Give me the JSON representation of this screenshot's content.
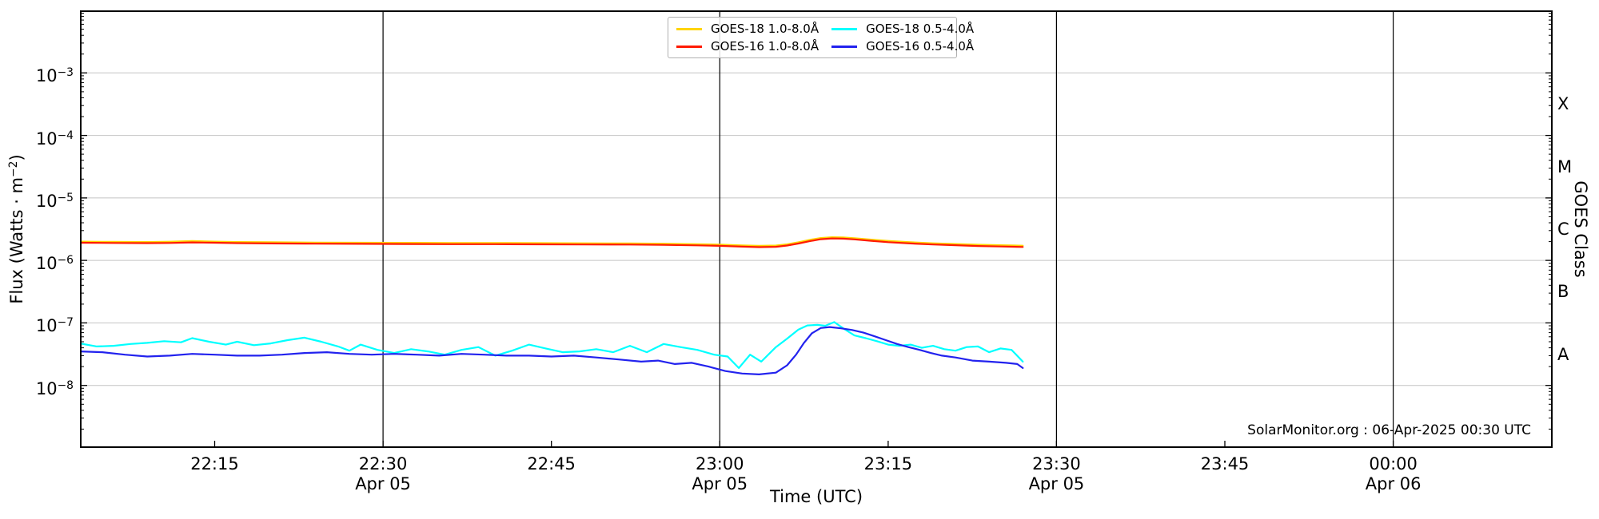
{
  "watermark": "SolarMonitor.org : 06-Apr-2025 00:30 UTC",
  "colors": {
    "goes18_long": "#FFD400",
    "goes16_long": "#FF1A00",
    "goes18_short": "#00FFFF",
    "goes16_short": "#2222EE",
    "gridline": "#C4C4C4",
    "day_line": "#000000",
    "spine": "#000000"
  },
  "chart_data": {
    "type": "line",
    "xlabel": "Time (UTC)",
    "ylabel_parts": {
      "prefix": "Flux (Watts · m",
      "exp": "−2",
      "suffix": ")"
    },
    "y2label": "GOES Class",
    "x_unit": "minutes after 22:00 UTC 05-Apr-2025",
    "xlim_minutes": [
      3,
      134.2
    ],
    "ylim": [
      1e-09,
      0.01
    ],
    "yscale": "log",
    "grid": "horizontal-decades",
    "legend_position": "top-center",
    "legend_columns": 2,
    "x_major_ticks": [
      {
        "t": 15,
        "label": "22:15"
      },
      {
        "t": 30,
        "label": "22:30",
        "sublabel": "Apr 05"
      },
      {
        "t": 45,
        "label": "22:45"
      },
      {
        "t": 60,
        "label": "23:00",
        "sublabel": "Apr 05"
      },
      {
        "t": 75,
        "label": "23:15"
      },
      {
        "t": 90,
        "label": "23:30",
        "sublabel": "Apr 05"
      },
      {
        "t": 105,
        "label": "23:45"
      },
      {
        "t": 120,
        "label": "00:00",
        "sublabel": "Apr 06"
      }
    ],
    "y_major_ticks": [
      {
        "value": 0.001,
        "exp": "−3"
      },
      {
        "value": 0.0001,
        "exp": "−4"
      },
      {
        "value": 1e-05,
        "exp": "−5"
      },
      {
        "value": 1e-06,
        "exp": "−6"
      },
      {
        "value": 1e-07,
        "exp": "−7"
      },
      {
        "value": 1e-08,
        "exp": "−8"
      }
    ],
    "grid_decades": [
      0.001,
      0.0001,
      1e-05,
      1e-06,
      1e-07,
      1e-08
    ],
    "day_lines_t": [
      30,
      60,
      90,
      120
    ],
    "goes_classes": [
      {
        "label": "X",
        "value": 0.000316
      },
      {
        "label": "M",
        "value": 3.16e-05
      },
      {
        "label": "C",
        "value": 3.16e-06
      },
      {
        "label": "B",
        "value": 3.16e-07
      },
      {
        "label": "A",
        "value": 3.16e-08
      }
    ],
    "series": [
      {
        "name": "GOES-18 1.0-8.0Å",
        "color": "#FFD400",
        "points_t_flux": [
          [
            3,
            2e-06
          ],
          [
            6,
            1.98e-06
          ],
          [
            9,
            1.97e-06
          ],
          [
            11,
            1.99e-06
          ],
          [
            13,
            2.04e-06
          ],
          [
            15,
            2e-06
          ],
          [
            17,
            1.97e-06
          ],
          [
            20,
            1.95e-06
          ],
          [
            24,
            1.93e-06
          ],
          [
            28,
            1.92e-06
          ],
          [
            32,
            1.91e-06
          ],
          [
            36,
            1.9e-06
          ],
          [
            40,
            1.9e-06
          ],
          [
            44,
            1.89e-06
          ],
          [
            48,
            1.88e-06
          ],
          [
            52,
            1.87e-06
          ],
          [
            55,
            1.85e-06
          ],
          [
            58,
            1.82e-06
          ],
          [
            60,
            1.79e-06
          ],
          [
            62,
            1.74e-06
          ],
          [
            63.5,
            1.71e-06
          ],
          [
            65,
            1.73e-06
          ],
          [
            66,
            1.81e-06
          ],
          [
            67,
            1.95e-06
          ],
          [
            68,
            2.13e-06
          ],
          [
            69,
            2.28e-06
          ],
          [
            70,
            2.35e-06
          ],
          [
            71,
            2.33e-06
          ],
          [
            72,
            2.27e-06
          ],
          [
            73.5,
            2.15e-06
          ],
          [
            75,
            2.05e-06
          ],
          [
            77,
            1.95e-06
          ],
          [
            79,
            1.88e-06
          ],
          [
            81,
            1.83e-06
          ],
          [
            83,
            1.78e-06
          ],
          [
            85,
            1.75e-06
          ],
          [
            87,
            1.72e-06
          ]
        ]
      },
      {
        "name": "GOES-16 1.0-8.0Å",
        "color": "#FF1A00",
        "points_t_flux": [
          [
            3,
            1.92e-06
          ],
          [
            6,
            1.9e-06
          ],
          [
            9,
            1.89e-06
          ],
          [
            11,
            1.9e-06
          ],
          [
            13,
            1.94e-06
          ],
          [
            15,
            1.92e-06
          ],
          [
            17,
            1.89e-06
          ],
          [
            20,
            1.87e-06
          ],
          [
            24,
            1.85e-06
          ],
          [
            28,
            1.84e-06
          ],
          [
            32,
            1.83e-06
          ],
          [
            36,
            1.82e-06
          ],
          [
            40,
            1.82e-06
          ],
          [
            44,
            1.81e-06
          ],
          [
            48,
            1.8e-06
          ],
          [
            52,
            1.79e-06
          ],
          [
            55,
            1.77e-06
          ],
          [
            58,
            1.74e-06
          ],
          [
            60,
            1.71e-06
          ],
          [
            62,
            1.66e-06
          ],
          [
            63.5,
            1.63e-06
          ],
          [
            65,
            1.65e-06
          ],
          [
            66,
            1.73e-06
          ],
          [
            67,
            1.86e-06
          ],
          [
            68,
            2.03e-06
          ],
          [
            69,
            2.18e-06
          ],
          [
            70,
            2.25e-06
          ],
          [
            71,
            2.23e-06
          ],
          [
            72,
            2.17e-06
          ],
          [
            73.5,
            2.06e-06
          ],
          [
            75,
            1.96e-06
          ],
          [
            77,
            1.87e-06
          ],
          [
            79,
            1.8e-06
          ],
          [
            81,
            1.75e-06
          ],
          [
            83,
            1.7e-06
          ],
          [
            85,
            1.67e-06
          ],
          [
            87,
            1.64e-06
          ]
        ]
      },
      {
        "name": "GOES-18 0.5-4.0Å",
        "color": "#00FFFF",
        "points_t_flux": [
          [
            3,
            4.7e-08
          ],
          [
            4.5,
            4.2e-08
          ],
          [
            6,
            4.3e-08
          ],
          [
            7.5,
            4.6e-08
          ],
          [
            9,
            4.8e-08
          ],
          [
            10.5,
            5.1e-08
          ],
          [
            12,
            4.9e-08
          ],
          [
            13,
            5.7e-08
          ],
          [
            14.5,
            5e-08
          ],
          [
            16,
            4.5e-08
          ],
          [
            17,
            5e-08
          ],
          [
            18.5,
            4.4e-08
          ],
          [
            20,
            4.7e-08
          ],
          [
            21.5,
            5.3e-08
          ],
          [
            23,
            5.8e-08
          ],
          [
            24.5,
            5e-08
          ],
          [
            26,
            4.2e-08
          ],
          [
            27,
            3.6e-08
          ],
          [
            28,
            4.5e-08
          ],
          [
            29.5,
            3.7e-08
          ],
          [
            31,
            3.3e-08
          ],
          [
            32.5,
            3.8e-08
          ],
          [
            34,
            3.5e-08
          ],
          [
            35.5,
            3.1e-08
          ],
          [
            37,
            3.7e-08
          ],
          [
            38.5,
            4.1e-08
          ],
          [
            40,
            3e-08
          ],
          [
            41.5,
            3.6e-08
          ],
          [
            43,
            4.5e-08
          ],
          [
            44.5,
            3.9e-08
          ],
          [
            46,
            3.4e-08
          ],
          [
            47.5,
            3.5e-08
          ],
          [
            49,
            3.8e-08
          ],
          [
            50.5,
            3.4e-08
          ],
          [
            52,
            4.3e-08
          ],
          [
            53.5,
            3.4e-08
          ],
          [
            55,
            4.6e-08
          ],
          [
            56.5,
            4.1e-08
          ],
          [
            58,
            3.7e-08
          ],
          [
            59.5,
            3.1e-08
          ],
          [
            60.7,
            2.9e-08
          ],
          [
            61.7,
            1.9e-08
          ],
          [
            62.7,
            3.1e-08
          ],
          [
            63.7,
            2.4e-08
          ],
          [
            65,
            4.1e-08
          ],
          [
            66,
            5.6e-08
          ],
          [
            67,
            7.8e-08
          ],
          [
            67.8,
            9.1e-08
          ],
          [
            68.7,
            9.3e-08
          ],
          [
            69.4,
            9e-08
          ],
          [
            70.2,
            1.03e-07
          ],
          [
            71,
            8.2e-08
          ],
          [
            72,
            6.3e-08
          ],
          [
            73,
            5.7e-08
          ],
          [
            74,
            5.1e-08
          ],
          [
            75,
            4.5e-08
          ],
          [
            76,
            4.3e-08
          ],
          [
            77,
            4.5e-08
          ],
          [
            78,
            4e-08
          ],
          [
            79,
            4.3e-08
          ],
          [
            80,
            3.8e-08
          ],
          [
            81,
            3.6e-08
          ],
          [
            82,
            4.1e-08
          ],
          [
            83,
            4.2e-08
          ],
          [
            84,
            3.4e-08
          ],
          [
            85,
            3.9e-08
          ],
          [
            86,
            3.7e-08
          ],
          [
            87,
            2.4e-08
          ]
        ]
      },
      {
        "name": "GOES-16 0.5-4.0Å",
        "color": "#2222EE",
        "points_t_flux": [
          [
            3,
            3.5e-08
          ],
          [
            5,
            3.4e-08
          ],
          [
            7,
            3.1e-08
          ],
          [
            9,
            2.9e-08
          ],
          [
            11,
            3e-08
          ],
          [
            13,
            3.2e-08
          ],
          [
            15,
            3.1e-08
          ],
          [
            17,
            3e-08
          ],
          [
            19,
            3e-08
          ],
          [
            21,
            3.1e-08
          ],
          [
            23,
            3.3e-08
          ],
          [
            25,
            3.4e-08
          ],
          [
            27,
            3.2e-08
          ],
          [
            29,
            3.1e-08
          ],
          [
            31,
            3.2e-08
          ],
          [
            33,
            3.1e-08
          ],
          [
            35,
            3e-08
          ],
          [
            37,
            3.2e-08
          ],
          [
            39,
            3.1e-08
          ],
          [
            41,
            3e-08
          ],
          [
            43,
            3e-08
          ],
          [
            45,
            2.9e-08
          ],
          [
            47,
            3e-08
          ],
          [
            49,
            2.8e-08
          ],
          [
            51,
            2.6e-08
          ],
          [
            53,
            2.4e-08
          ],
          [
            54.5,
            2.5e-08
          ],
          [
            56,
            2.2e-08
          ],
          [
            57.5,
            2.3e-08
          ],
          [
            59,
            2e-08
          ],
          [
            60.5,
            1.7e-08
          ],
          [
            62,
            1.55e-08
          ],
          [
            63.5,
            1.5e-08
          ],
          [
            65,
            1.6e-08
          ],
          [
            66,
            2.1e-08
          ],
          [
            66.8,
            3.1e-08
          ],
          [
            67.5,
            4.8e-08
          ],
          [
            68.2,
            6.8e-08
          ],
          [
            69,
            8.3e-08
          ],
          [
            69.8,
            8.6e-08
          ],
          [
            70.8,
            8.2e-08
          ],
          [
            71.8,
            7.7e-08
          ],
          [
            72.8,
            7e-08
          ],
          [
            73.8,
            6.1e-08
          ],
          [
            74.8,
            5.3e-08
          ],
          [
            75.8,
            4.6e-08
          ],
          [
            76.8,
            4.1e-08
          ],
          [
            77.8,
            3.7e-08
          ],
          [
            78.8,
            3.3e-08
          ],
          [
            79.8,
            3e-08
          ],
          [
            81,
            2.8e-08
          ],
          [
            82.5,
            2.5e-08
          ],
          [
            84,
            2.4e-08
          ],
          [
            85.5,
            2.3e-08
          ],
          [
            86.5,
            2.2e-08
          ],
          [
            87,
            1.9e-08
          ]
        ]
      }
    ]
  }
}
